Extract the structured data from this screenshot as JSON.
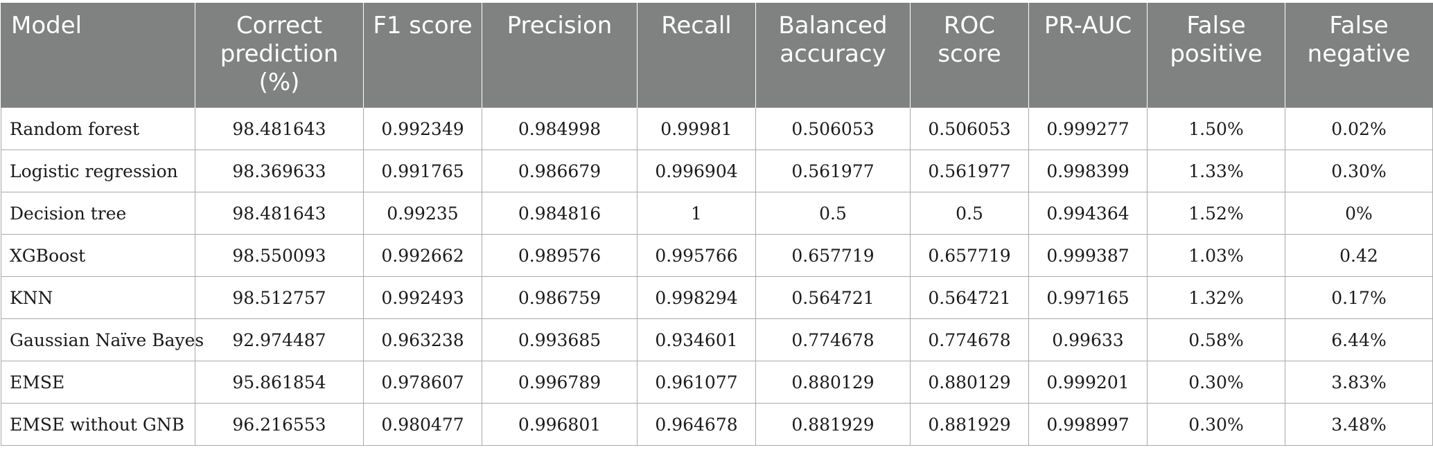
{
  "table": {
    "headers": [
      "Model",
      "Correct prediction (%)",
      "F1 score",
      "Precision",
      "Recall",
      "Balanced accuracy",
      "ROC score",
      "PR-AUC",
      "False positive",
      "False negative"
    ],
    "rows": [
      [
        "Random forest",
        "98.481643",
        "0.992349",
        "0.984998",
        "0.99981",
        "0.506053",
        "0.506053",
        "0.999277",
        "1.50%",
        "0.02%"
      ],
      [
        "Logistic regression",
        "98.369633",
        "0.991765",
        "0.986679",
        "0.996904",
        "0.561977",
        "0.561977",
        "0.998399",
        "1.33%",
        "0.30%"
      ],
      [
        "Decision tree",
        "98.481643",
        "0.99235",
        "0.984816",
        "1",
        "0.5",
        "0.5",
        "0.994364",
        "1.52%",
        "0%"
      ],
      [
        "XGBoost",
        "98.550093",
        "0.992662",
        "0.989576",
        "0.995766",
        "0.657719",
        "0.657719",
        "0.999387",
        "1.03%",
        "0.42"
      ],
      [
        "KNN",
        "98.512757",
        "0.992493",
        "0.986759",
        "0.998294",
        "0.564721",
        "0.564721",
        "0.997165",
        "1.32%",
        "0.17%"
      ],
      [
        "Gaussian Naïve Bayes",
        "92.974487",
        "0.963238",
        "0.993685",
        "0.934601",
        "0.774678",
        "0.774678",
        "0.99633",
        "0.58%",
        "6.44%"
      ],
      [
        "EMSE",
        "95.861854",
        "0.978607",
        "0.996789",
        "0.961077",
        "0.880129",
        "0.880129",
        "0.999201",
        "0.30%",
        "3.83%"
      ],
      [
        "EMSE without GNB",
        "96.216553",
        "0.980477",
        "0.996801",
        "0.964678",
        "0.881929",
        "0.881929",
        "0.998997",
        "0.30%",
        "3.48%"
      ]
    ]
  }
}
